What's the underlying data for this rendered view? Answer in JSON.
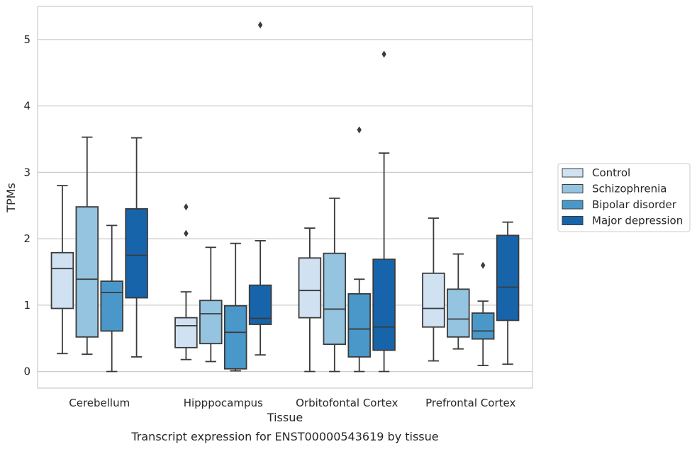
{
  "chart_data": {
    "type": "boxplot",
    "xlabel": "Tissue",
    "ylabel": "TPMs",
    "caption": "Transcript expression for ENST00000543619 by tissue",
    "categories": [
      "Cerebellum",
      "Hipppocampus",
      "Orbitofontal Cortex",
      "Prefrontal Cortex"
    ],
    "ylim": [
      -0.25,
      5.5
    ],
    "yticks": [
      0,
      1,
      2,
      3,
      4,
      5
    ],
    "grid": true,
    "legend_position": "right",
    "series": [
      {
        "name": "Control",
        "color": "#d0e1f2",
        "boxes": [
          {
            "whislo": 0.27,
            "q1": 0.95,
            "med": 1.55,
            "q3": 1.79,
            "whishi": 2.8,
            "fliers": []
          },
          {
            "whislo": 0.18,
            "q1": 0.36,
            "med": 0.69,
            "q3": 0.81,
            "whishi": 1.2,
            "fliers": [
              2.08,
              2.48
            ]
          },
          {
            "whislo": 0.0,
            "q1": 0.81,
            "med": 1.22,
            "q3": 1.71,
            "whishi": 2.16,
            "fliers": []
          },
          {
            "whislo": 0.16,
            "q1": 0.67,
            "med": 0.95,
            "q3": 1.48,
            "whishi": 2.31,
            "fliers": []
          }
        ]
      },
      {
        "name": "Schizophrenia",
        "color": "#94c4df",
        "boxes": [
          {
            "whislo": 0.26,
            "q1": 0.52,
            "med": 1.39,
            "q3": 2.48,
            "whishi": 3.53,
            "fliers": []
          },
          {
            "whislo": 0.15,
            "q1": 0.42,
            "med": 0.87,
            "q3": 1.07,
            "whishi": 1.87,
            "fliers": []
          },
          {
            "whislo": 0.0,
            "q1": 0.41,
            "med": 0.94,
            "q3": 1.78,
            "whishi": 2.61,
            "fliers": []
          },
          {
            "whislo": 0.34,
            "q1": 0.52,
            "med": 0.79,
            "q3": 1.24,
            "whishi": 1.77,
            "fliers": []
          }
        ]
      },
      {
        "name": "Bipolar disorder",
        "color": "#4a98c9",
        "boxes": [
          {
            "whislo": 0.0,
            "q1": 0.61,
            "med": 1.19,
            "q3": 1.36,
            "whishi": 2.2,
            "fliers": []
          },
          {
            "whislo": 0.01,
            "q1": 0.04,
            "med": 0.59,
            "q3": 0.99,
            "whishi": 1.93,
            "fliers": []
          },
          {
            "whislo": 0.0,
            "q1": 0.22,
            "med": 0.64,
            "q3": 1.17,
            "whishi": 1.39,
            "fliers": [
              3.64
            ]
          },
          {
            "whislo": 0.09,
            "q1": 0.49,
            "med": 0.61,
            "q3": 0.88,
            "whishi": 1.06,
            "fliers": [
              1.6
            ]
          }
        ]
      },
      {
        "name": "Major depression",
        "color": "#1764ab",
        "boxes": [
          {
            "whislo": 0.22,
            "q1": 1.11,
            "med": 1.75,
            "q3": 2.45,
            "whishi": 3.52,
            "fliers": []
          },
          {
            "whislo": 0.25,
            "q1": 0.71,
            "med": 0.8,
            "q3": 1.3,
            "whishi": 1.97,
            "fliers": [
              5.22
            ]
          },
          {
            "whislo": 0.0,
            "q1": 0.32,
            "med": 0.67,
            "q3": 1.69,
            "whishi": 3.29,
            "fliers": [
              4.78
            ]
          },
          {
            "whislo": 0.11,
            "q1": 0.77,
            "med": 1.27,
            "q3": 2.05,
            "whishi": 2.25,
            "fliers": []
          }
        ]
      }
    ]
  }
}
